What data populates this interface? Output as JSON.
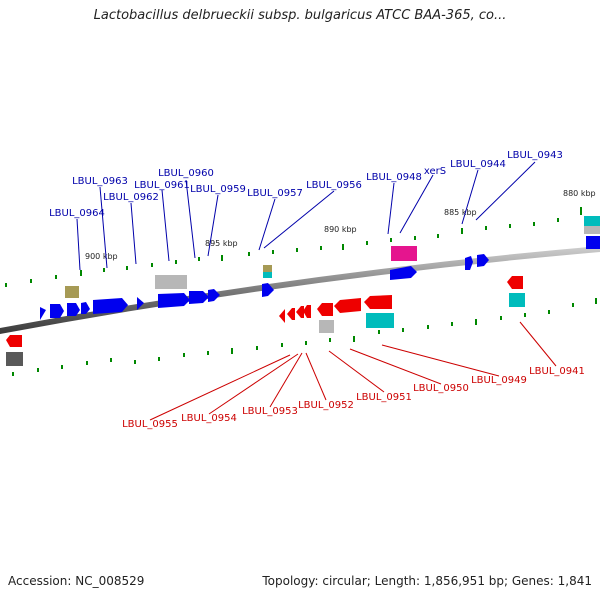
{
  "title": "Lactobacillus delbrueckii subsp. bulgaricus ATCC BAA-365, co...",
  "footer": {
    "accession": "Accession: NC_008529",
    "summary": "Topology: circular; Length: 1,856,951 bp; Genes: 1,841"
  },
  "colors": {
    "forward_label": "#0000aa",
    "reverse_label": "#cc0000",
    "forward_gene": "#0000ee",
    "reverse_gene": "#ee0000",
    "tick": "#007700",
    "backbone": "#808080"
  },
  "scale_labels": [
    "880 kbp",
    "885 kbp",
    "890 kbp",
    "895 kbp",
    "900 kbp"
  ],
  "forward_labels": [
    "LBUL_0943",
    "LBUL_0944",
    "xerS",
    "LBUL_0948",
    "LBUL_0956",
    "LBUL_0957",
    "LBUL_0959",
    "LBUL_0960",
    "LBUL_0961",
    "LBUL_0962",
    "LBUL_0963",
    "LBUL_0964"
  ],
  "reverse_labels": [
    "LBUL_0941",
    "LBUL_0949",
    "LBUL_0950",
    "LBUL_0951",
    "LBUL_0952",
    "LBUL_0953",
    "LBUL_0954",
    "LBUL_0955"
  ]
}
